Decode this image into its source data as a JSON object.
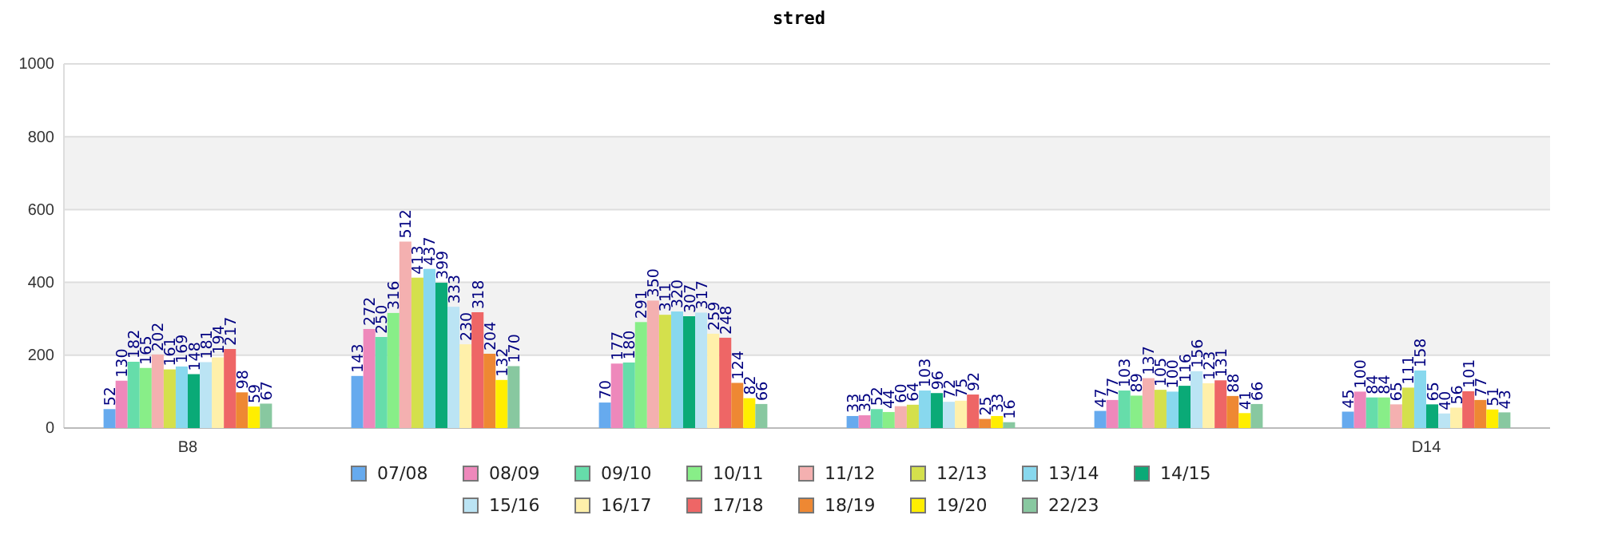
{
  "chart_data": {
    "type": "bar",
    "title": "stred",
    "categories": [
      "B8",
      null,
      null,
      null,
      null,
      "D14"
    ],
    "ylim": [
      0,
      1000
    ],
    "yticks": [
      0,
      200,
      400,
      600,
      800,
      1000
    ],
    "grid": "y",
    "legend": "bottom",
    "data_labels": true,
    "series": [
      {
        "name": "07/08",
        "color": "#66aaee",
        "values": [
          52,
          143,
          70,
          33,
          47,
          45
        ]
      },
      {
        "name": "08/09",
        "color": "#ee88bb",
        "values": [
          130,
          272,
          177,
          35,
          77,
          100
        ]
      },
      {
        "name": "09/10",
        "color": "#66ddaa",
        "values": [
          182,
          250,
          180,
          52,
          103,
          84
        ]
      },
      {
        "name": "10/11",
        "color": "#88ee88",
        "values": [
          165,
          316,
          291,
          44,
          89,
          84
        ]
      },
      {
        "name": "11/12",
        "color": "#f4b0b0",
        "values": [
          202,
          512,
          350,
          60,
          137,
          65
        ]
      },
      {
        "name": "12/13",
        "color": "#d4e04c",
        "values": [
          161,
          413,
          311,
          64,
          105,
          111
        ]
      },
      {
        "name": "13/14",
        "color": "#88d8ee",
        "values": [
          169,
          437,
          320,
          103,
          100,
          158
        ]
      },
      {
        "name": "14/15",
        "color": "#0aaa77",
        "values": [
          148,
          399,
          307,
          96,
          116,
          65
        ]
      },
      {
        "name": "15/16",
        "color": "#bbe4f4",
        "values": [
          181,
          333,
          317,
          72,
          156,
          40
        ]
      },
      {
        "name": "16/17",
        "color": "#fff0aa",
        "values": [
          194,
          230,
          259,
          75,
          123,
          56
        ]
      },
      {
        "name": "17/18",
        "color": "#ee6666",
        "values": [
          217,
          318,
          248,
          92,
          131,
          101
        ]
      },
      {
        "name": "18/19",
        "color": "#ee8833",
        "values": [
          98,
          204,
          124,
          25,
          88,
          77
        ]
      },
      {
        "name": "19/20",
        "color": "#ffee00",
        "values": [
          59,
          132,
          82,
          33,
          41,
          51
        ]
      },
      {
        "name": "22/23",
        "color": "#88c8a0",
        "values": [
          67,
          170,
          66,
          16,
          66,
          43
        ]
      }
    ]
  }
}
